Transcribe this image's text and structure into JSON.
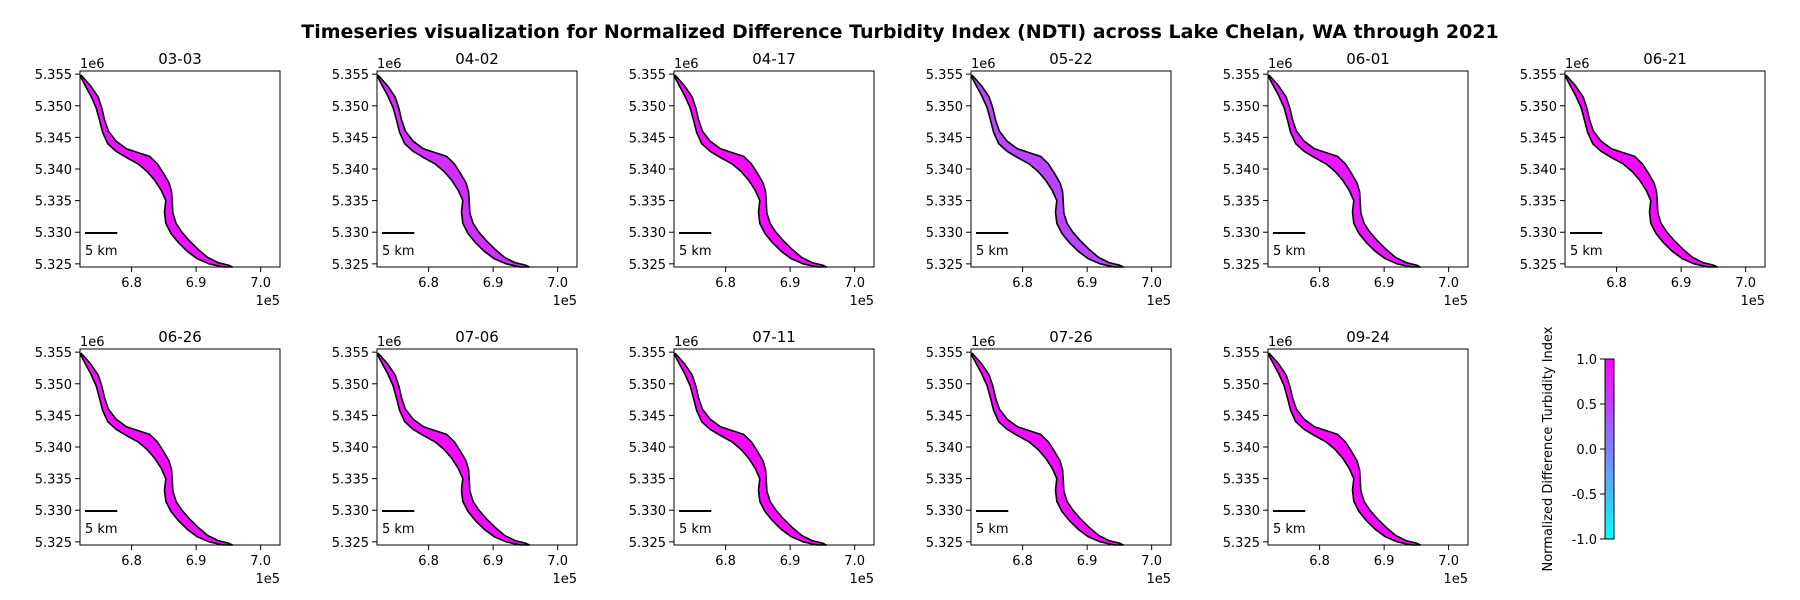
{
  "title": "Timeseries visualization for Normalized Difference Turbidity Index (NDTI) across Lake Chelan, WA through 2021",
  "panels": [
    {
      "label": "03-03",
      "tint": 0.08
    },
    {
      "label": "04-02",
      "tint": 0.2
    },
    {
      "label": "04-17",
      "tint": 0.05
    },
    {
      "label": "05-22",
      "tint": 0.3
    },
    {
      "label": "06-01",
      "tint": 0.1
    },
    {
      "label": "06-21",
      "tint": 0.04
    },
    {
      "label": "06-26",
      "tint": 0.06
    },
    {
      "label": "07-06",
      "tint": 0.05
    },
    {
      "label": "07-11",
      "tint": 0.04
    },
    {
      "label": "07-26",
      "tint": 0.06
    },
    {
      "label": "09-24",
      "tint": 0.03
    }
  ],
  "axes": {
    "x_ticks": [
      "6.8",
      "6.9",
      "7.0"
    ],
    "x_tick_values": [
      680000,
      690000,
      700000
    ],
    "x_range": [
      672000,
      703000
    ],
    "x_offset": "1e5",
    "y_ticks": [
      "5.325",
      "5.330",
      "5.335",
      "5.340",
      "5.345",
      "5.350",
      "5.355"
    ],
    "y_tick_values": [
      5325000,
      5330000,
      5335000,
      5340000,
      5345000,
      5350000,
      5355000
    ],
    "y_range": [
      5324500,
      5355500
    ],
    "y_offset": "1e6"
  },
  "scalebar": {
    "label": "5 km",
    "length_m": 5000
  },
  "colorbar": {
    "label": "Normalized Difference Turbidity Index",
    "ticks": [
      "1.0",
      "0.5",
      "0.0",
      "-0.5",
      "-1.0"
    ],
    "tick_values": [
      1.0,
      0.5,
      0.0,
      -0.5,
      -1.0
    ],
    "range": [
      -1.0,
      1.0
    ],
    "colors": [
      "#00ffff",
      "#8080ff",
      "#ff00ff"
    ]
  },
  "lake_outline_utm": [
    [
      672200,
      5354800
    ],
    [
      673600,
      5353200
    ],
    [
      674800,
      5351400
    ],
    [
      675400,
      5349600
    ],
    [
      675800,
      5347800
    ],
    [
      676400,
      5346000
    ],
    [
      677600,
      5344400
    ],
    [
      679200,
      5343200
    ],
    [
      681000,
      5342600
    ],
    [
      682800,
      5342000
    ],
    [
      684000,
      5340800
    ],
    [
      685000,
      5339200
    ],
    [
      685800,
      5337800
    ],
    [
      686200,
      5336400
    ],
    [
      686300,
      5334600
    ],
    [
      686400,
      5333000
    ],
    [
      686900,
      5331400
    ],
    [
      687800,
      5330000
    ],
    [
      689000,
      5328600
    ],
    [
      690400,
      5327200
    ],
    [
      691800,
      5326000
    ],
    [
      693400,
      5325200
    ],
    [
      695000,
      5324800
    ],
    [
      695600,
      5324500
    ],
    [
      694200,
      5324500
    ],
    [
      692000,
      5325000
    ],
    [
      690200,
      5325800
    ],
    [
      688600,
      5327000
    ],
    [
      687200,
      5328400
    ],
    [
      686100,
      5329800
    ],
    [
      685300,
      5331400
    ],
    [
      685100,
      5333200
    ],
    [
      685300,
      5335000
    ],
    [
      684600,
      5336600
    ],
    [
      683600,
      5338200
    ],
    [
      682400,
      5339600
    ],
    [
      681000,
      5340800
    ],
    [
      679200,
      5341800
    ],
    [
      677600,
      5342800
    ],
    [
      676300,
      5344000
    ],
    [
      675500,
      5345800
    ],
    [
      675000,
      5347800
    ],
    [
      674500,
      5349700
    ],
    [
      673700,
      5351500
    ],
    [
      672800,
      5353200
    ],
    [
      672100,
      5354600
    ]
  ]
}
